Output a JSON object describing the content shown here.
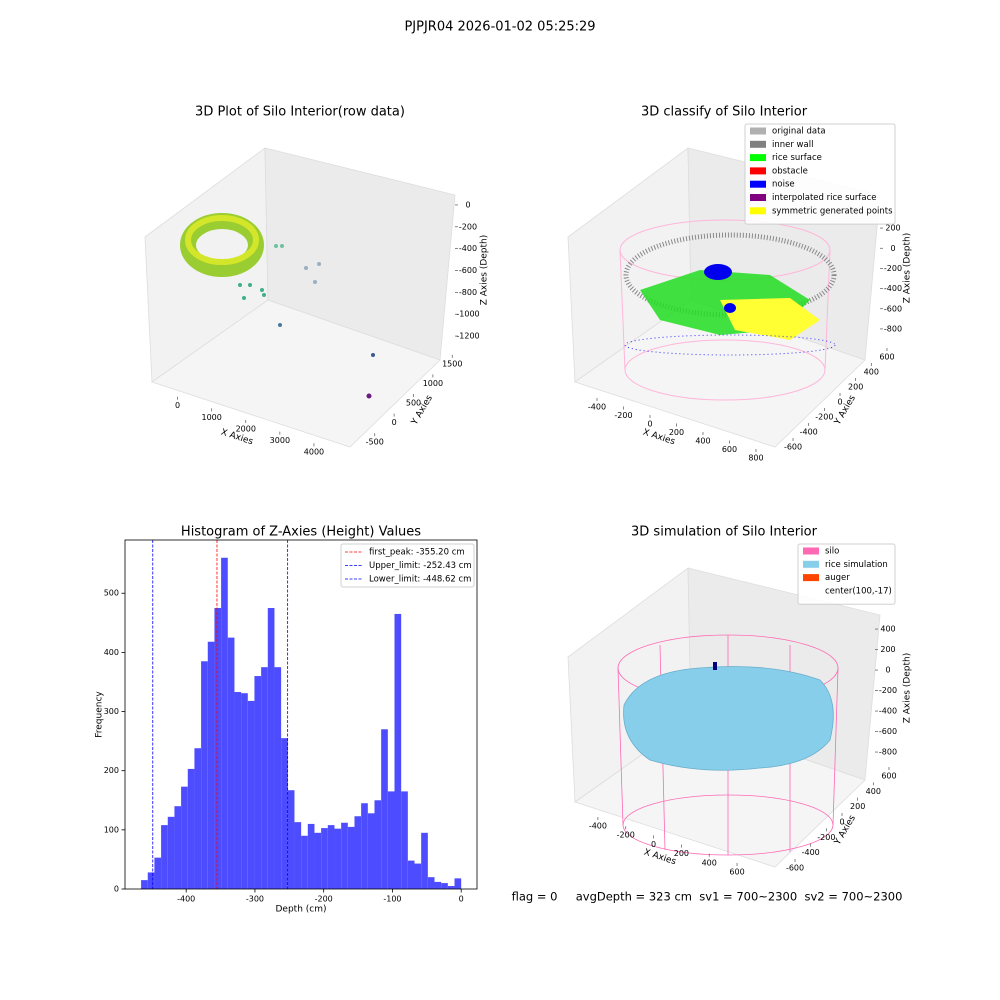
{
  "title": "PJPJR04 2026-01-02 05:25:29",
  "chart_data": [
    {
      "type": "scatter3d",
      "title": "3D Plot of Silo Interior(row data)",
      "xlabel": "X Axies",
      "ylabel": "Y Axies",
      "zlabel": "Z Axies (Depth)",
      "xlim": [
        -750,
        4500
      ],
      "ylim": [
        -700,
        1700
      ],
      "zlim": [
        -1300,
        100
      ],
      "xticks": [
        0,
        1000,
        2000,
        3000,
        4000
      ],
      "yticks": [
        -500,
        0,
        500,
        1000,
        1500
      ],
      "zticks": [
        0,
        -200,
        -400,
        -600,
        -800,
        -1000,
        -1200
      ]
    },
    {
      "type": "scatter3d",
      "title": "3D classify of Silo Interior",
      "xlabel": "X Axies",
      "ylabel": "Y Axies",
      "zlabel": "Z Axies (Depth)",
      "xlim": [
        -500,
        850
      ],
      "ylim": [
        -700,
        700
      ],
      "zlim": [
        -900,
        300
      ],
      "xticks": [
        -400,
        -200,
        0,
        200,
        400,
        600,
        800
      ],
      "yticks": [
        -600,
        -400,
        -200,
        0,
        200,
        400,
        600
      ],
      "zticks": [
        200,
        0,
        -200,
        -400,
        -600,
        -800
      ],
      "legend": [
        {
          "name": "original data",
          "color": "#b0b0b0"
        },
        {
          "name": "inner wall",
          "color": "#808080"
        },
        {
          "name": "rice surface",
          "color": "#00ff00"
        },
        {
          "name": "obstacle",
          "color": "#ff0000"
        },
        {
          "name": "noise",
          "color": "#0000ff"
        },
        {
          "name": "interpolated rice surface",
          "color": "#800080"
        },
        {
          "name": "symmetric generated points",
          "color": "#ffff00"
        }
      ]
    },
    {
      "type": "histogram",
      "title": "Histogram of Z-Axies (Height) Values",
      "xlabel": "Depth (cm)",
      "ylabel": "Frequency",
      "color": "#4d4dff",
      "bins": [
        -465.6,
        -455.9,
        -446.2,
        -436.5,
        -426.8,
        -417.1,
        -407.4,
        -397.7,
        -388.0,
        -378.3,
        -368.6,
        -358.9,
        -349.2,
        -339.5,
        -329.8,
        -320.1,
        -310.4,
        -300.7,
        -291.0,
        -281.3,
        -271.6,
        -261.9,
        -252.2,
        -242.5,
        -232.8,
        -223.1,
        -213.4,
        -203.7,
        -194.0,
        -184.3,
        -174.6,
        -164.9,
        -155.2,
        -145.5,
        -135.8,
        -126.1,
        -116.4,
        -106.7,
        -97.0,
        -87.3,
        -77.6,
        -67.9,
        -58.2,
        -48.5,
        -38.8,
        -29.1,
        -19.4,
        -9.7,
        0
      ],
      "values": [
        15,
        28,
        53,
        108,
        122,
        140,
        173,
        203,
        238,
        385,
        418,
        475,
        560,
        425,
        333,
        331,
        318,
        360,
        375,
        475,
        375,
        255,
        167,
        113,
        90,
        110,
        95,
        103,
        108,
        102,
        112,
        105,
        123,
        145,
        128,
        150,
        270,
        165,
        465,
        165,
        48,
        43,
        95,
        20,
        12,
        10,
        5,
        18
      ],
      "xlim": [
        -489,
        23
      ],
      "ylim": [
        0,
        590
      ],
      "xticks": [
        -400,
        -300,
        -200,
        -100,
        0
      ],
      "yticks": [
        0,
        100,
        200,
        300,
        400,
        500
      ],
      "lines": [
        {
          "value": -355.2,
          "label": "first_peak: -355.20 cm",
          "color": "#ff0000"
        },
        {
          "value": -252.43,
          "label": "Upper_limit: -252.43 cm",
          "color": "#0000ff"
        },
        {
          "value": -448.62,
          "label": "Lower_limit: -448.62 cm",
          "color": "#0000ff"
        }
      ]
    },
    {
      "type": "surface3d",
      "title": "3D simulation of Silo Interior",
      "xlabel": "X Axies",
      "ylabel": "Y Axies",
      "zlabel": "Z Axies (Depth)",
      "xlim": [
        -500,
        750
      ],
      "ylim": [
        -700,
        700
      ],
      "zlim": [
        -900,
        500
      ],
      "xticks": [
        -400,
        -200,
        0,
        200,
        400,
        600
      ],
      "yticks": [
        -600,
        -400,
        -200,
        0,
        200,
        400,
        600
      ],
      "zticks": [
        400,
        200,
        0,
        -200,
        -400,
        -600,
        -800
      ],
      "legend": [
        {
          "name": "silo",
          "color": "#ff69b4"
        },
        {
          "name": "rice simulation",
          "color": "#87ceeb"
        },
        {
          "name": "auger",
          "color": "#ff4500"
        },
        {
          "name": "center(100,-17)"
        }
      ],
      "annotation": "flag = 0     avgDepth = 323 cm  sv1 = 700~2300  sv2 = 700~2300"
    }
  ]
}
